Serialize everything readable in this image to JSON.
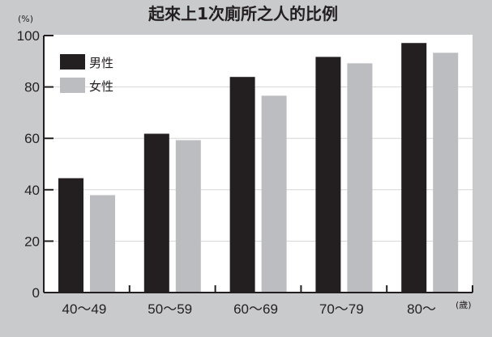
{
  "chart_data": {
    "type": "bar",
    "title": "起來上1次廁所之人的比例",
    "ylabel": "(%)",
    "xlabel": "(歲)",
    "ylim": [
      0,
      100
    ],
    "yticks": [
      "0",
      "20",
      "40",
      "60",
      "80",
      "100"
    ],
    "categories": [
      "40～49",
      "50～59",
      "60～69",
      "70～79",
      "80～"
    ],
    "legend_position": "top-left",
    "grid": true,
    "series": [
      {
        "name": "男性",
        "color": "#231f20",
        "values": [
          44.5,
          61.8,
          83.9,
          91.7,
          97.1
        ]
      },
      {
        "name": "女性",
        "color": "#bcbdc0",
        "values": [
          37.9,
          59.3,
          76.6,
          89.2,
          93.3
        ]
      }
    ]
  }
}
